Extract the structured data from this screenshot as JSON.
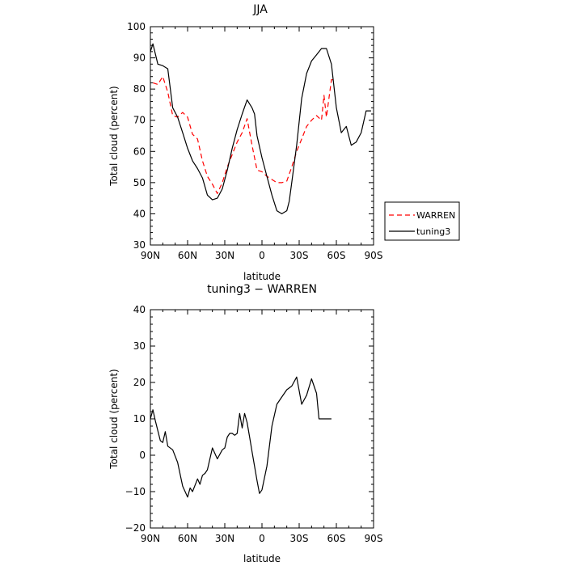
{
  "chart_data": [
    {
      "type": "line",
      "title": "JJA",
      "xlabel": "latitude",
      "ylabel": "Total cloud (percent)",
      "xlim": [
        -90,
        90
      ],
      "ylim": [
        30,
        100
      ],
      "xticks": [
        {
          "value": -90,
          "label": "90N"
        },
        {
          "value": -60,
          "label": "60N"
        },
        {
          "value": -30,
          "label": "30N"
        },
        {
          "value": 0,
          "label": "0"
        },
        {
          "value": 30,
          "label": "30S"
        },
        {
          "value": 60,
          "label": "60S"
        },
        {
          "value": 90,
          "label": "90S"
        }
      ],
      "yticks": [
        30,
        40,
        50,
        60,
        70,
        80,
        90,
        100
      ],
      "legend": "right",
      "series": [
        {
          "name": "WARREN",
          "color": "#ff0000",
          "dash": "dashed",
          "x": [
            -88,
            -84,
            -80,
            -76,
            -72,
            -68,
            -64,
            -60,
            -56,
            -52,
            -48,
            -44,
            -40,
            -36,
            -32,
            -28,
            -24,
            -20,
            -16,
            -12,
            -8,
            -4,
            0,
            4,
            8,
            12,
            16,
            20,
            24,
            28,
            32,
            36,
            40,
            44,
            48,
            50,
            52,
            56,
            58
          ],
          "y": [
            82,
            81.5,
            84,
            79,
            71.5,
            71,
            72.5,
            71,
            65.5,
            64,
            57,
            52,
            49.5,
            46.5,
            50,
            55,
            59,
            63,
            66,
            70.5,
            62,
            54,
            53.5,
            52,
            51,
            50,
            50,
            50.5,
            55,
            60,
            64,
            68,
            70,
            71.5,
            70,
            78,
            71,
            83,
            83
          ]
        },
        {
          "name": "tuning3",
          "color": "#000000",
          "dash": "solid",
          "x": [
            -90,
            -88,
            -84,
            -80,
            -76,
            -72,
            -68,
            -64,
            -60,
            -56,
            -52,
            -48,
            -44,
            -40,
            -36,
            -32,
            -28,
            -24,
            -20,
            -16,
            -12,
            -8,
            -6,
            -4,
            0,
            4,
            8,
            12,
            16,
            20,
            22,
            24,
            28,
            32,
            36,
            40,
            44,
            48,
            52,
            56,
            60,
            64,
            68,
            72,
            76,
            80,
            84,
            88
          ],
          "y": [
            92,
            94.5,
            88,
            87.5,
            86.5,
            74,
            71,
            66,
            61,
            57,
            54.5,
            51.5,
            46,
            44.5,
            45,
            48,
            54,
            61,
            67,
            72,
            76.5,
            74,
            72,
            65,
            58,
            52,
            46,
            41,
            40,
            41,
            44,
            50,
            62,
            77,
            85,
            89,
            91,
            93,
            93,
            88,
            74,
            66,
            68,
            62,
            63,
            66,
            73,
            73
          ]
        }
      ]
    },
    {
      "type": "line",
      "title": "tuning3 − WARREN",
      "xlabel": "latitude",
      "ylabel": "Total cloud (percent)",
      "xlim": [
        -90,
        90
      ],
      "ylim": [
        -20,
        40
      ],
      "xticks": [
        {
          "value": -90,
          "label": "90N"
        },
        {
          "value": -60,
          "label": "60N"
        },
        {
          "value": -30,
          "label": "30N"
        },
        {
          "value": 0,
          "label": "0"
        },
        {
          "value": 30,
          "label": "30S"
        },
        {
          "value": 60,
          "label": "60S"
        },
        {
          "value": 90,
          "label": "90S"
        }
      ],
      "yticks": [
        -20,
        -10,
        0,
        10,
        20,
        30,
        40
      ],
      "series": [
        {
          "color": "#000000",
          "dash": "solid",
          "x": [
            -90,
            -88,
            -86,
            -82,
            -80,
            -78,
            -76,
            -72,
            -68,
            -64,
            -60,
            -58,
            -56,
            -52,
            -50,
            -48,
            -46,
            -44,
            -42,
            -40,
            -36,
            -32,
            -30,
            -28,
            -26,
            -24,
            -22,
            -20,
            -18,
            -16,
            -14,
            -12,
            -10,
            -8,
            -6,
            -4,
            -2,
            0,
            4,
            8,
            12,
            16,
            20,
            24,
            28,
            32,
            36,
            40,
            44,
            46,
            48,
            50,
            52,
            54,
            56
          ],
          "y": [
            10,
            12.5,
            9.5,
            4,
            3.5,
            6.5,
            2.5,
            1.5,
            -2,
            -8.5,
            -11.5,
            -9,
            -10,
            -6.5,
            -8,
            -5.5,
            -5,
            -4,
            -1,
            2,
            -1,
            1.5,
            2,
            5,
            6,
            6,
            5.5,
            6,
            11.5,
            7.5,
            11.5,
            9,
            5,
            1,
            -3,
            -7,
            -10.5,
            -9.5,
            -3,
            8,
            14,
            16,
            18,
            19,
            21.5,
            14,
            16.5,
            21,
            17,
            10,
            10,
            10,
            10,
            10,
            10
          ]
        }
      ]
    }
  ]
}
